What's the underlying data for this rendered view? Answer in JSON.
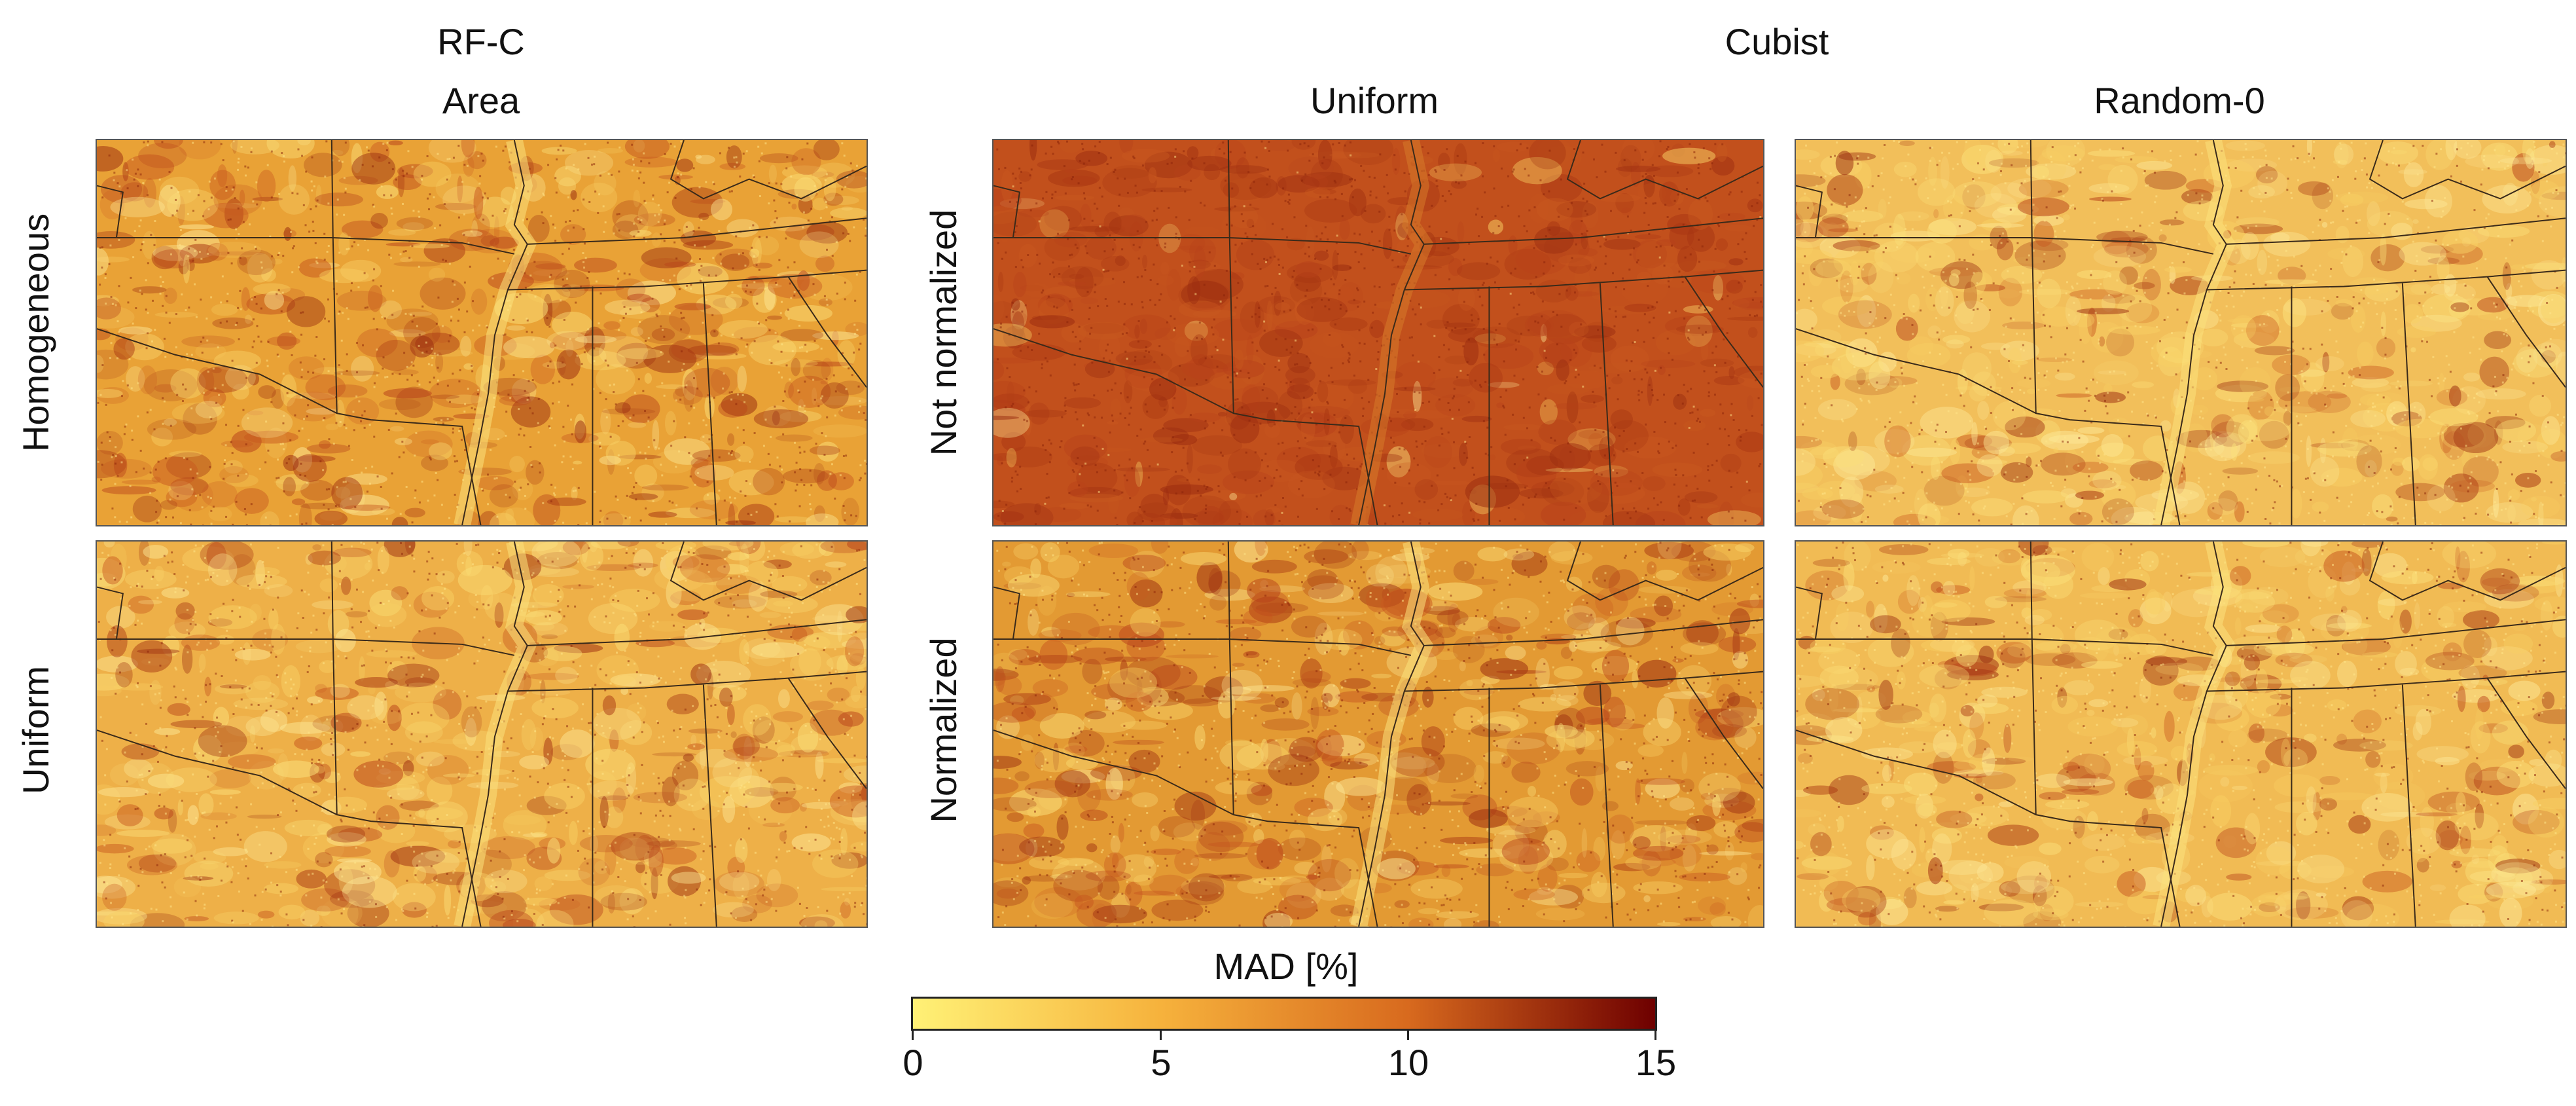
{
  "headers": {
    "rfc": "RF-C",
    "cubist": "Cubist",
    "col_area": "Area",
    "col_uniform": "Uniform",
    "col_random": "Random-0"
  },
  "row_labels": {
    "rfc_top": "Homogeneous",
    "rfc_bottom": "Uniform",
    "cubist_top": "Not normalized",
    "cubist_bottom": "Normalized"
  },
  "panels": [
    {
      "id": "rfc-area-homogeneous",
      "base": "#e9a236",
      "intensity": 0.55
    },
    {
      "id": "cubist-uniform-not-normalized",
      "base": "#c2501c",
      "intensity": 0.95
    },
    {
      "id": "cubist-random0-not-normalized",
      "base": "#f2bf5a",
      "intensity": 0.3
    },
    {
      "id": "rfc-area-uniform",
      "base": "#eeb048",
      "intensity": 0.4
    },
    {
      "id": "cubist-uniform-normalized",
      "base": "#e39a33",
      "intensity": 0.55
    },
    {
      "id": "cubist-random0-normalized",
      "base": "#f1bb54",
      "intensity": 0.32
    }
  ],
  "colorbar": {
    "title": "MAD [%]",
    "ticks": [
      "0",
      "5",
      "10",
      "15"
    ],
    "min": 0,
    "max": 15,
    "colors": [
      "#fff176",
      "#f6b23c",
      "#d86a1e",
      "#6e0000"
    ]
  }
}
